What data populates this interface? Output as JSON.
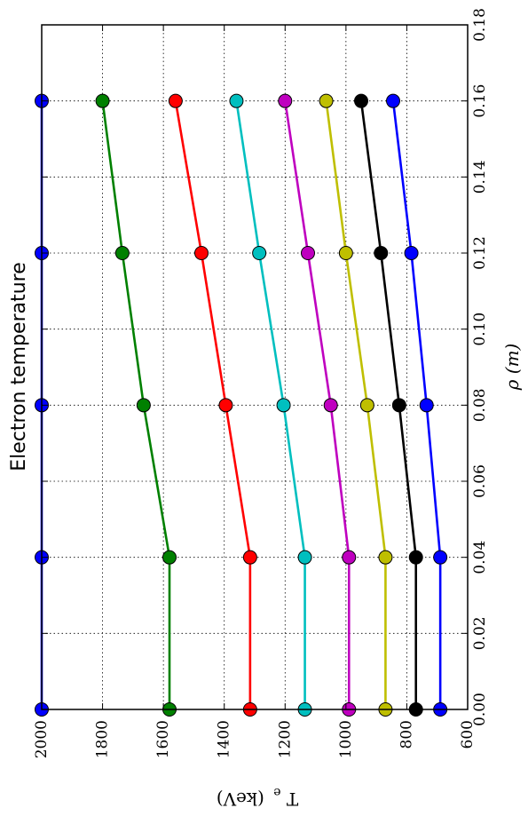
{
  "chart_data": {
    "type": "line",
    "title": "Electron temperature",
    "xlabel_base": "ρ",
    "xlabel_unit": "(m)",
    "ylabel_base": "T",
    "ylabel_sub": "e",
    "ylabel_unit": "(keV)",
    "xlim": [
      0.0,
      0.18
    ],
    "ylim": [
      600,
      2000
    ],
    "xticks": [
      "0.00",
      "0.02",
      "0.04",
      "0.06",
      "0.08",
      "0.10",
      "0.12",
      "0.14",
      "0.16",
      "0.18"
    ],
    "yticks": [
      "600",
      "800",
      "1000",
      "1200",
      "1400",
      "1600",
      "1800",
      "2000"
    ],
    "grid": true,
    "orientation": "rotated-90-clockwise",
    "x": [
      0.0,
      0.04,
      0.08,
      0.12,
      0.16
    ],
    "series": [
      {
        "color": "#0000ff",
        "values": [
          2000,
          2000,
          2000,
          2000,
          2000
        ]
      },
      {
        "color": "#008000",
        "values": [
          1580,
          1580,
          1665,
          1735,
          1800
        ]
      },
      {
        "color": "#ff0000",
        "values": [
          1315,
          1315,
          1395,
          1475,
          1560
        ]
      },
      {
        "color": "#00bfbf",
        "values": [
          1135,
          1135,
          1205,
          1285,
          1360
        ]
      },
      {
        "color": "#bf00bf",
        "values": [
          990,
          990,
          1050,
          1125,
          1200
        ]
      },
      {
        "color": "#bfbf00",
        "values": [
          870,
          870,
          930,
          1000,
          1065
        ]
      },
      {
        "color": "#000000",
        "values": [
          770,
          770,
          825,
          885,
          950
        ]
      },
      {
        "color": "#0000ff",
        "values": [
          690,
          690,
          735,
          785,
          845
        ]
      }
    ]
  }
}
